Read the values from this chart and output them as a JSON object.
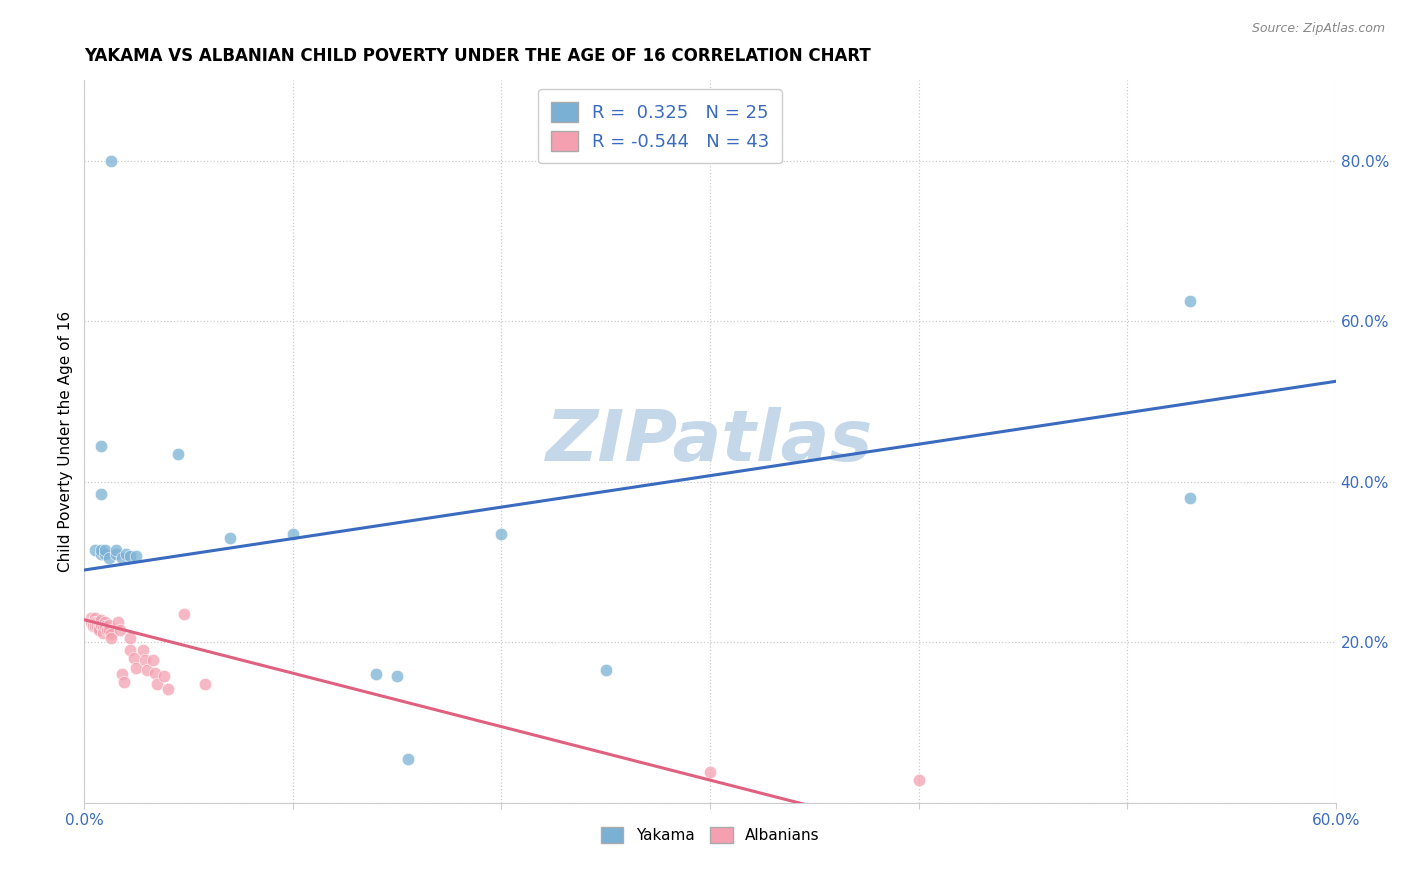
{
  "title": "YAKAMA VS ALBANIAN CHILD POVERTY UNDER THE AGE OF 16 CORRELATION CHART",
  "source": "Source: ZipAtlas.com",
  "ylabel": "Child Poverty Under the Age of 16",
  "xlim": [
    0.0,
    0.6
  ],
  "ylim": [
    0.0,
    0.9
  ],
  "xticks": [
    0.0,
    0.1,
    0.2,
    0.3,
    0.4,
    0.5,
    0.6
  ],
  "yticks": [
    0.0,
    0.2,
    0.4,
    0.6,
    0.8
  ],
  "ytick_labels": [
    "",
    "20.0%",
    "40.0%",
    "60.0%",
    "80.0%"
  ],
  "xtick_labels": [
    "0.0%",
    "",
    "",
    "",
    "",
    "",
    "60.0%"
  ],
  "background_color": "#ffffff",
  "watermark": "ZIPatlas",
  "legend_r_blue": "R =  0.325",
  "legend_n_blue": "N = 25",
  "legend_r_pink": "R = -0.544",
  "legend_n_pink": "N = 43",
  "blue_color": "#7ab0d4",
  "pink_color": "#f4a0b0",
  "blue_line_color": "#3a6bbf",
  "pink_line_color": "#e06080",
  "blue_scatter": [
    [
      0.005,
      0.315
    ],
    [
      0.008,
      0.31
    ],
    [
      0.008,
      0.315
    ],
    [
      0.01,
      0.31
    ],
    [
      0.01,
      0.315
    ],
    [
      0.012,
      0.305
    ],
    [
      0.015,
      0.31
    ],
    [
      0.015,
      0.315
    ],
    [
      0.018,
      0.305
    ],
    [
      0.02,
      0.31
    ],
    [
      0.022,
      0.308
    ],
    [
      0.025,
      0.308
    ],
    [
      0.013,
      0.8
    ],
    [
      0.07,
      0.33
    ],
    [
      0.1,
      0.335
    ],
    [
      0.2,
      0.335
    ],
    [
      0.045,
      0.435
    ],
    [
      0.008,
      0.445
    ],
    [
      0.008,
      0.385
    ],
    [
      0.14,
      0.16
    ],
    [
      0.15,
      0.158
    ],
    [
      0.25,
      0.165
    ],
    [
      0.155,
      0.055
    ],
    [
      0.53,
      0.625
    ],
    [
      0.53,
      0.38
    ]
  ],
  "pink_scatter": [
    [
      0.003,
      0.23
    ],
    [
      0.003,
      0.225
    ],
    [
      0.004,
      0.225
    ],
    [
      0.004,
      0.22
    ],
    [
      0.005,
      0.23
    ],
    [
      0.005,
      0.225
    ],
    [
      0.005,
      0.22
    ],
    [
      0.006,
      0.225
    ],
    [
      0.006,
      0.22
    ],
    [
      0.007,
      0.225
    ],
    [
      0.007,
      0.218
    ],
    [
      0.007,
      0.215
    ],
    [
      0.008,
      0.228
    ],
    [
      0.008,
      0.222
    ],
    [
      0.009,
      0.218
    ],
    [
      0.009,
      0.212
    ],
    [
      0.01,
      0.225
    ],
    [
      0.01,
      0.22
    ],
    [
      0.011,
      0.215
    ],
    [
      0.012,
      0.222
    ],
    [
      0.012,
      0.215
    ],
    [
      0.013,
      0.21
    ],
    [
      0.013,
      0.205
    ],
    [
      0.016,
      0.225
    ],
    [
      0.017,
      0.215
    ],
    [
      0.018,
      0.16
    ],
    [
      0.019,
      0.15
    ],
    [
      0.022,
      0.205
    ],
    [
      0.022,
      0.19
    ],
    [
      0.024,
      0.18
    ],
    [
      0.025,
      0.168
    ],
    [
      0.028,
      0.19
    ],
    [
      0.029,
      0.178
    ],
    [
      0.03,
      0.165
    ],
    [
      0.033,
      0.178
    ],
    [
      0.034,
      0.162
    ],
    [
      0.035,
      0.148
    ],
    [
      0.038,
      0.158
    ],
    [
      0.04,
      0.142
    ],
    [
      0.048,
      0.235
    ],
    [
      0.058,
      0.148
    ],
    [
      0.3,
      0.038
    ],
    [
      0.4,
      0.028
    ]
  ],
  "blue_trend_x": [
    0.0,
    0.6
  ],
  "blue_trend_y": [
    0.29,
    0.525
  ],
  "pink_trend_x": [
    0.0,
    0.365
  ],
  "pink_trend_y": [
    0.228,
    -0.015
  ],
  "grid_color": "#cccccc",
  "title_fontsize": 12,
  "label_fontsize": 11,
  "tick_fontsize": 11,
  "tick_color": "#3a6bbf",
  "watermark_fontsize": 52,
  "watermark_color": "#c5d8ea",
  "marker_size": 80,
  "marker_alpha": 0.75
}
